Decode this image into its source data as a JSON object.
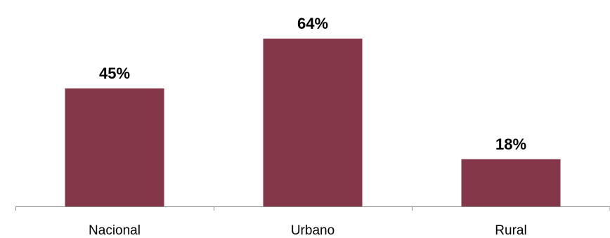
{
  "colors": {
    "bar": "#85374a",
    "axis": "#8c8c8c",
    "text": "#000000"
  },
  "chart_data": {
    "type": "bar",
    "categories": [
      "Nacional",
      "Urbano",
      "Rural"
    ],
    "values": [
      45,
      64,
      18
    ],
    "value_labels": [
      "45%",
      "64%",
      "18%"
    ],
    "title": "",
    "xlabel": "",
    "ylabel": "",
    "ylim": [
      0,
      64
    ],
    "grid": false,
    "legend": "none"
  }
}
